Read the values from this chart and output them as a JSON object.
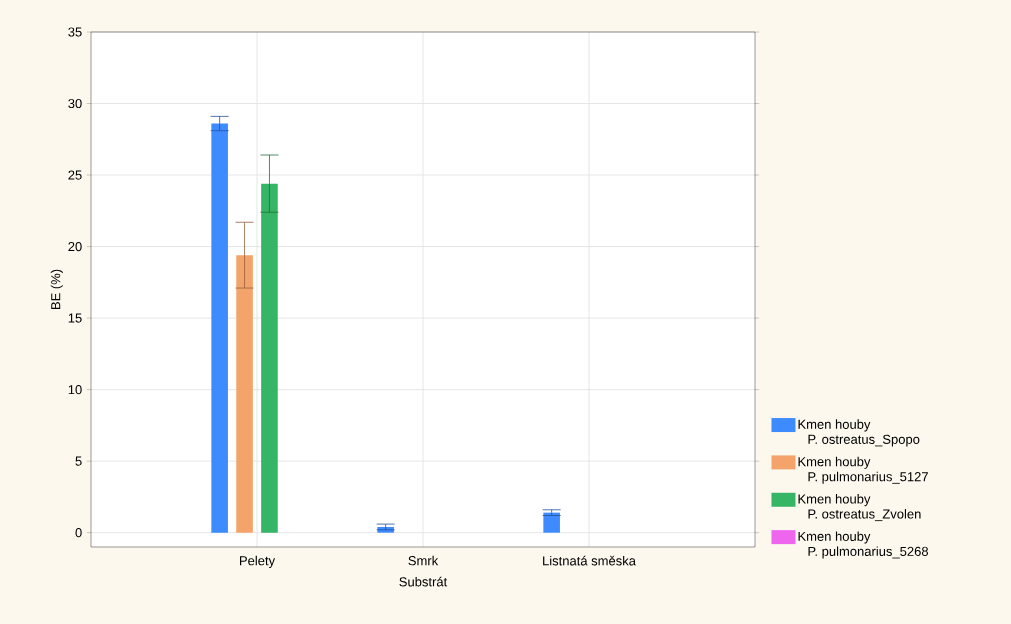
{
  "chart_data": {
    "type": "bar",
    "xlabel": "Substrát",
    "ylabel": "BE (%)",
    "categories": [
      "Pelety",
      "Smrk",
      "Listnatá směska"
    ],
    "series": [
      {
        "name": "Kmen houby P. ostreatus_Spopo",
        "color": "#3d8bff",
        "values": [
          28.6,
          0.4,
          1.4
        ],
        "errors": [
          0.5,
          0.2,
          0.2
        ]
      },
      {
        "name": "Kmen houby P. pulmonarius_5127",
        "color": "#f4a46a",
        "values": [
          19.4,
          0,
          0
        ],
        "errors": [
          2.3,
          null,
          null
        ]
      },
      {
        "name": "Kmen houby P. ostreatus_Zvolen",
        "color": "#35b565",
        "values": [
          24.4,
          0,
          0
        ],
        "errors": [
          2.0,
          null,
          null
        ]
      },
      {
        "name": "Kmen houby P. pulmonarius_5268",
        "color": "#ee66ee",
        "values": [
          0,
          0,
          0
        ],
        "errors": [
          null,
          null,
          null
        ]
      }
    ],
    "ylim": [
      -1,
      35
    ],
    "yticks": [
      0,
      5,
      10,
      15,
      20,
      25,
      30,
      35
    ],
    "grid": true,
    "legend": "right"
  }
}
